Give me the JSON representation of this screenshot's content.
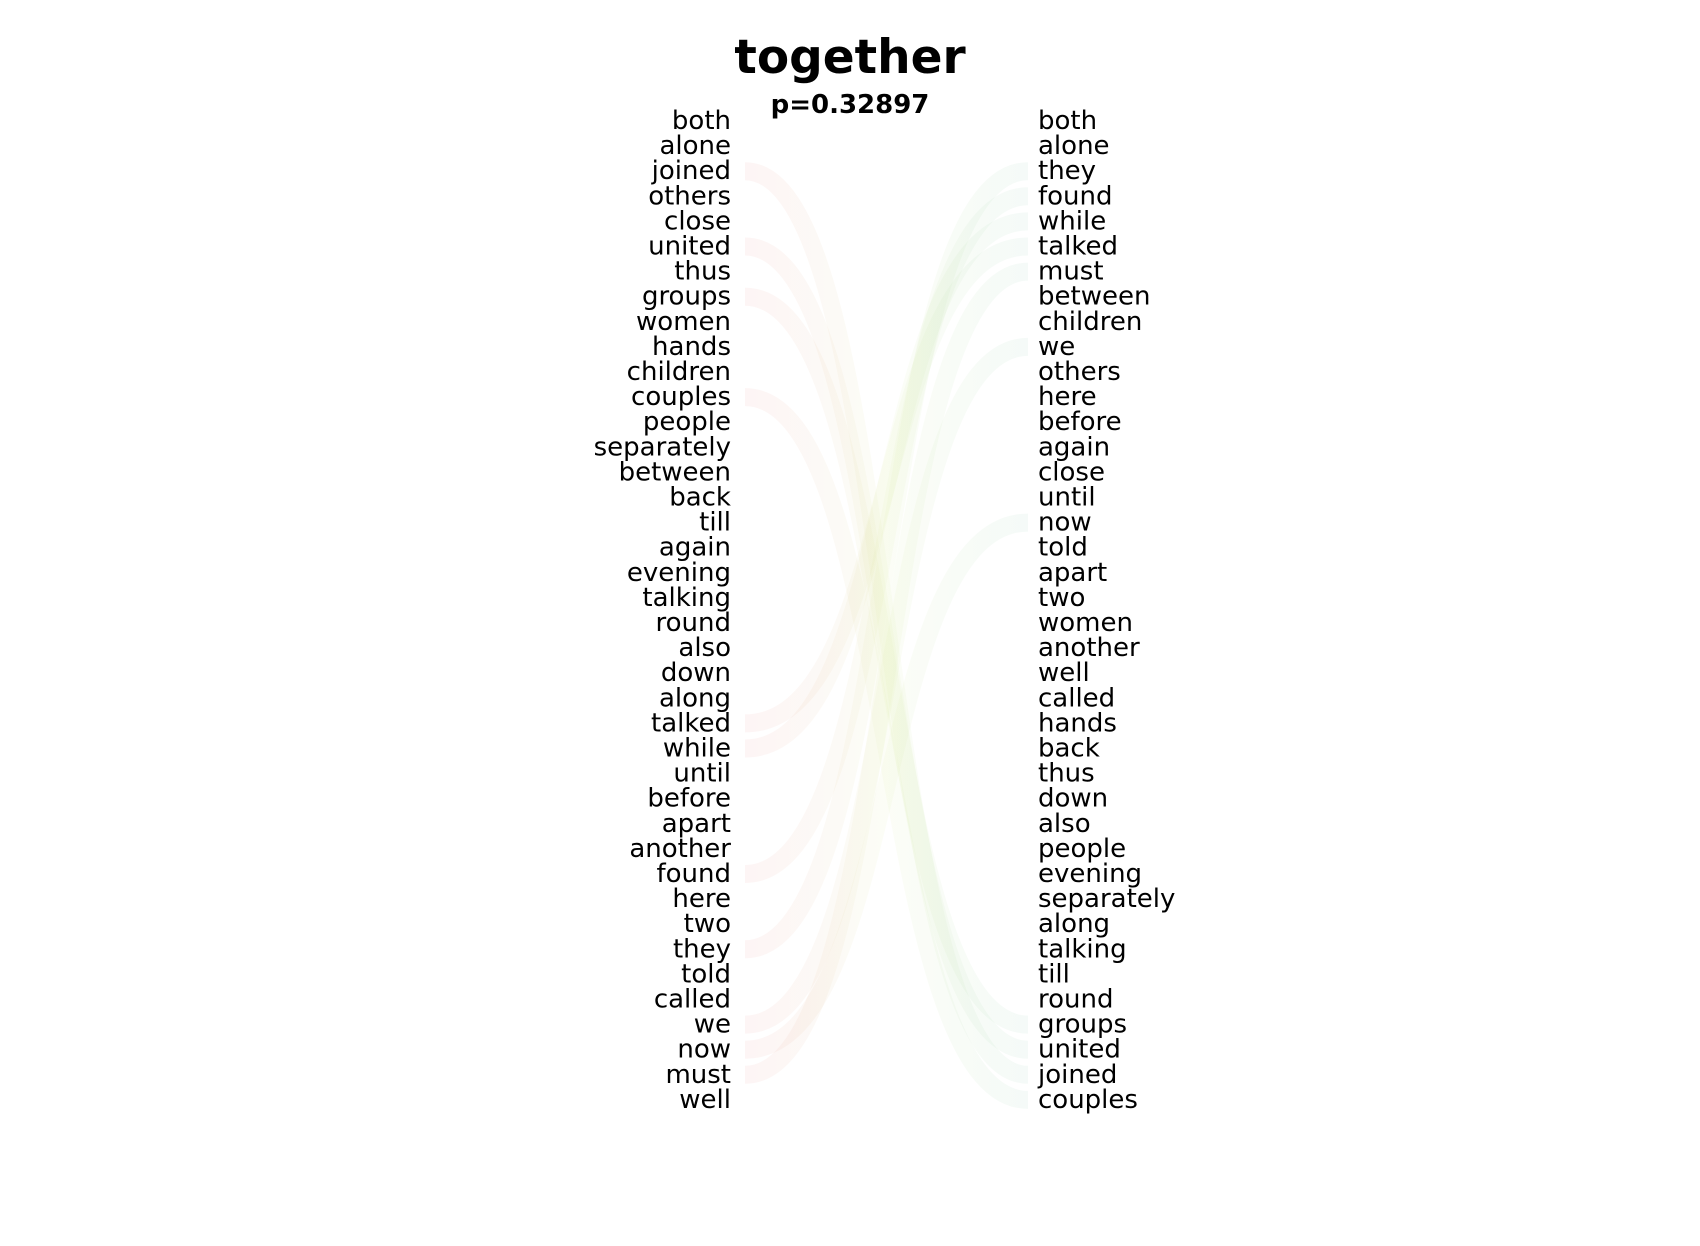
{
  "title": "together",
  "subtitle": "p=0.32897",
  "colors": {
    "left_links": "#e05050",
    "right_links": "#50b080",
    "mid_tint": "#c8e070"
  },
  "left_words": [
    "both",
    "alone",
    "joined",
    "others",
    "close",
    "united",
    "thus",
    "groups",
    "women",
    "hands",
    "children",
    "couples",
    "people",
    "separately",
    "between",
    "back",
    "till",
    "again",
    "evening",
    "talking",
    "round",
    "also",
    "down",
    "along",
    "talked",
    "while",
    "until",
    "before",
    "apart",
    "another",
    "found",
    "here",
    "two",
    "they",
    "told",
    "called",
    "we",
    "now",
    "must",
    "well"
  ],
  "right_words": [
    "both",
    "alone",
    "they",
    "found",
    "while",
    "talked",
    "must",
    "between",
    "children",
    "we",
    "others",
    "here",
    "before",
    "again",
    "close",
    "until",
    "now",
    "told",
    "apart",
    "two",
    "women",
    "another",
    "well",
    "called",
    "hands",
    "back",
    "thus",
    "down",
    "also",
    "people",
    "evening",
    "separately",
    "along",
    "talking",
    "till",
    "round",
    "groups",
    "united",
    "joined",
    "couples"
  ],
  "links": [
    {
      "from": "joined",
      "to": "joined"
    },
    {
      "from": "united",
      "to": "united"
    },
    {
      "from": "groups",
      "to": "groups"
    },
    {
      "from": "couples",
      "to": "couples"
    },
    {
      "from": "while",
      "to": "while"
    },
    {
      "from": "found",
      "to": "found"
    },
    {
      "from": "they",
      "to": "they"
    },
    {
      "from": "we",
      "to": "we"
    },
    {
      "from": "now",
      "to": "now"
    },
    {
      "from": "must",
      "to": "must"
    },
    {
      "from": "talked",
      "to": "talked"
    }
  ]
}
